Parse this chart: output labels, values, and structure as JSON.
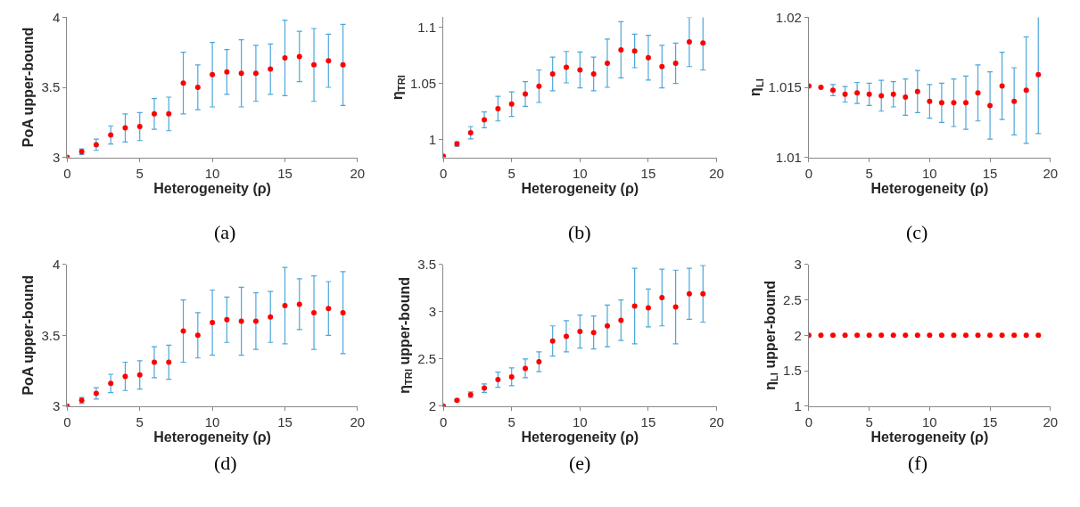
{
  "chart_data": [
    {
      "type": "scatter",
      "xlabel": "Heterogeneity (ρ)",
      "ylabel": "PoA upper-bound",
      "annotations": [
        "(a)"
      ],
      "x": [
        0,
        1,
        2,
        3,
        4,
        5,
        6,
        7,
        8,
        9,
        10,
        11,
        12,
        13,
        14,
        15,
        16,
        17,
        18,
        19
      ],
      "xlim": [
        0,
        20
      ],
      "xticks": [
        0,
        5,
        10,
        15,
        20
      ],
      "ylim": [
        3,
        4
      ],
      "yticks": [
        3,
        3.5,
        4
      ],
      "marker": "circle",
      "series": [
        {
          "color": "#ff0000",
          "values": [
            3.0,
            3.04,
            3.09,
            3.16,
            3.21,
            3.22,
            3.31,
            3.31,
            3.53,
            3.5,
            3.59,
            3.61,
            3.6,
            3.6,
            3.63,
            3.71,
            3.72,
            3.66,
            3.69,
            3.66
          ],
          "errors": [
            null,
            0.02,
            0.04,
            0.065,
            0.1,
            0.1,
            0.11,
            0.12,
            0.22,
            0.16,
            0.23,
            0.16,
            0.24,
            0.2,
            0.18,
            0.27,
            0.18,
            0.26,
            0.19,
            0.29
          ]
        }
      ]
    },
    {
      "type": "scatter",
      "xlabel": "Heterogeneity (ρ)",
      "ylabel": "η$_{TRI}$",
      "annotations": [
        "(b)"
      ],
      "x": [
        0,
        1,
        2,
        3,
        4,
        5,
        6,
        7,
        8,
        9,
        10,
        11,
        12,
        13,
        14,
        15,
        16,
        17,
        18,
        19
      ],
      "xlim": [
        0,
        20
      ],
      "xticks": [
        0,
        5,
        10,
        15,
        20
      ],
      "ylim": [
        0.984,
        1.109
      ],
      "yticks": [
        1,
        1.05,
        1.1
      ],
      "marker": "circle",
      "series": [
        {
          "color": "#ff0000",
          "values": [
            0.985,
            0.996,
            1.006,
            1.0175,
            1.0275,
            1.0315,
            1.0405,
            1.0475,
            1.0585,
            1.0645,
            1.062,
            1.0585,
            1.068,
            1.08,
            1.079,
            1.073,
            1.065,
            1.068,
            1.087,
            1.086
          ],
          "errors": [
            null,
            0.002,
            0.0055,
            0.007,
            0.011,
            0.011,
            0.011,
            0.0145,
            0.015,
            0.014,
            0.016,
            0.015,
            0.0215,
            0.025,
            0.015,
            0.02,
            0.019,
            0.018,
            0.022,
            0.024
          ]
        }
      ]
    },
    {
      "type": "scatter",
      "xlabel": "Heterogeneity (ρ)",
      "ylabel": "η$_{LI}$",
      "annotations": [
        "(c)"
      ],
      "x": [
        0,
        1,
        2,
        3,
        4,
        5,
        6,
        7,
        8,
        9,
        10,
        11,
        12,
        13,
        14,
        15,
        16,
        17,
        18,
        19
      ],
      "xlim": [
        0,
        20
      ],
      "xticks": [
        0,
        5,
        10,
        15,
        20
      ],
      "ylim": [
        1.01,
        1.02
      ],
      "yticks": [
        1.01,
        1.015,
        1.02
      ],
      "marker": "circle",
      "series": [
        {
          "color": "#ff0000",
          "values": [
            1.0151,
            1.015,
            1.0148,
            1.0145,
            1.0146,
            1.0145,
            1.0144,
            1.0145,
            1.0143,
            1.0147,
            1.014,
            1.0139,
            1.0139,
            1.0139,
            1.0146,
            1.0137,
            1.0151,
            1.014,
            1.0148,
            1.0159
          ],
          "errors": [
            null,
            null,
            0.0004,
            0.00055,
            0.00075,
            0.0008,
            0.0011,
            0.0009,
            0.0013,
            0.0015,
            0.0012,
            0.0014,
            0.0017,
            0.0019,
            0.002,
            0.0024,
            0.0024,
            0.0024,
            0.0038,
            0.0042
          ]
        }
      ]
    },
    {
      "type": "scatter",
      "xlabel": "Heterogeneity (ρ)",
      "ylabel": "PoA upper-bound",
      "annotations": [
        "(d)"
      ],
      "x": [
        0,
        1,
        2,
        3,
        4,
        5,
        6,
        7,
        8,
        9,
        10,
        11,
        12,
        13,
        14,
        15,
        16,
        17,
        18,
        19
      ],
      "xlim": [
        0,
        20
      ],
      "xticks": [
        0,
        5,
        10,
        15,
        20
      ],
      "ylim": [
        3,
        4
      ],
      "yticks": [
        3,
        3.5,
        4
      ],
      "marker": "circle",
      "series": [
        {
          "color": "#ff0000",
          "values": [
            3.0,
            3.04,
            3.09,
            3.16,
            3.21,
            3.22,
            3.31,
            3.31,
            3.53,
            3.5,
            3.59,
            3.61,
            3.6,
            3.6,
            3.63,
            3.71,
            3.72,
            3.66,
            3.69,
            3.66
          ],
          "errors": [
            null,
            0.02,
            0.04,
            0.065,
            0.1,
            0.1,
            0.11,
            0.12,
            0.22,
            0.16,
            0.23,
            0.16,
            0.24,
            0.2,
            0.18,
            0.27,
            0.18,
            0.26,
            0.19,
            0.29
          ]
        }
      ]
    },
    {
      "type": "scatter",
      "xlabel": "Heterogeneity (ρ)",
      "ylabel": "η$_{TRI}$ upper-bound",
      "annotations": [
        "(e)"
      ],
      "x": [
        0,
        1,
        2,
        3,
        4,
        5,
        6,
        7,
        8,
        9,
        10,
        11,
        12,
        13,
        14,
        15,
        16,
        17,
        18,
        19
      ],
      "xlim": [
        0,
        20
      ],
      "xticks": [
        0,
        5,
        10,
        15,
        20
      ],
      "ylim": [
        2,
        3.5
      ],
      "yticks": [
        2,
        2.5,
        3,
        3.5
      ],
      "marker": "circle",
      "series": [
        {
          "color": "#ff0000",
          "values": [
            2.0,
            2.06,
            2.12,
            2.19,
            2.28,
            2.31,
            2.4,
            2.47,
            2.69,
            2.74,
            2.79,
            2.78,
            2.85,
            2.91,
            3.06,
            3.04,
            3.15,
            3.05,
            3.19,
            3.19
          ],
          "errors": [
            null,
            0.01,
            0.03,
            0.045,
            0.08,
            0.095,
            0.1,
            0.105,
            0.16,
            0.165,
            0.175,
            0.175,
            0.22,
            0.215,
            0.4,
            0.2,
            0.3,
            0.39,
            0.27,
            0.3
          ]
        }
      ]
    },
    {
      "type": "scatter",
      "xlabel": "Heterogeneity (ρ)",
      "ylabel": "η$_{LI}$ upper-bound",
      "annotations": [
        "(f)"
      ],
      "x": [
        0,
        1,
        2,
        3,
        4,
        5,
        6,
        7,
        8,
        9,
        10,
        11,
        12,
        13,
        14,
        15,
        16,
        17,
        18,
        19
      ],
      "xlim": [
        0,
        20
      ],
      "xticks": [
        0,
        5,
        10,
        15,
        20
      ],
      "ylim": [
        1,
        3
      ],
      "yticks": [
        1,
        1.5,
        2,
        2.5,
        3
      ],
      "marker": "circle",
      "series": [
        {
          "color": "#ff0000",
          "values": [
            2,
            2,
            2,
            2,
            2,
            2,
            2,
            2,
            2,
            2,
            2,
            2,
            2,
            2,
            2,
            2,
            2,
            2,
            2,
            2
          ]
        }
      ]
    }
  ]
}
